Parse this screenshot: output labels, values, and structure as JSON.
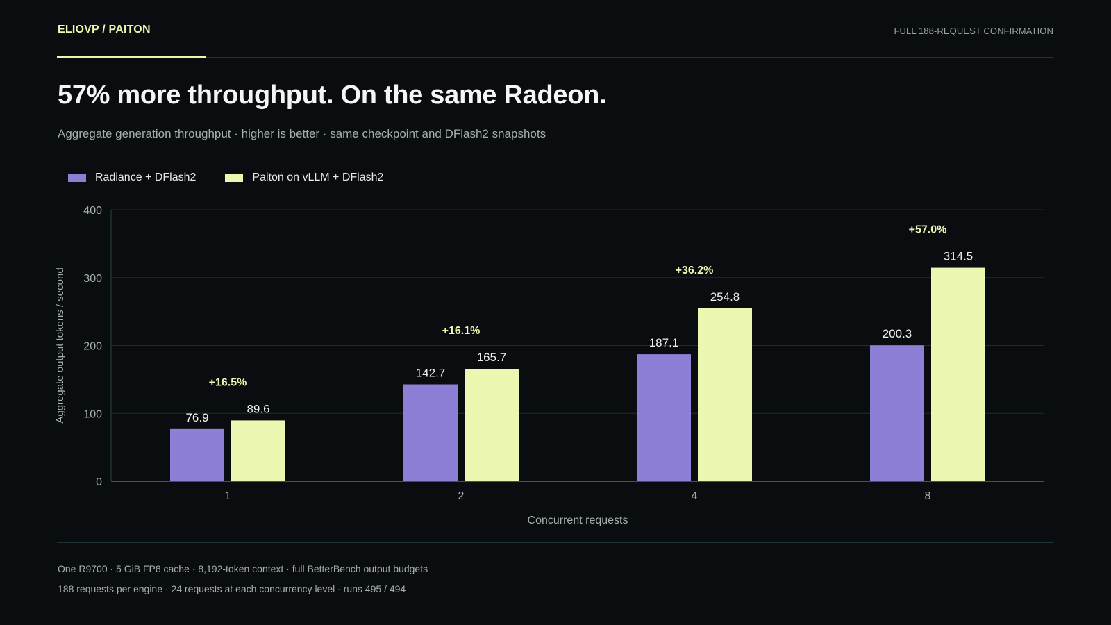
{
  "header": {
    "brand": "ELIOVP / PAITON",
    "right_label": "FULL 188-REQUEST CONFIRMATION"
  },
  "title": "57% more throughput. On the same Radeon.",
  "subtitle": "Aggregate generation throughput · higher is better · same checkpoint and DFlash2 snapshots",
  "footer": {
    "notes": [
      "One R9700 · 5 GiB FP8 cache · 8,192-token context · full BetterBench output budgets",
      "188 requests per engine · 24 requests at each concurrency level · runs 495 / 494"
    ]
  },
  "colors": {
    "background": "#0a0d0f",
    "series_a": "#8d7fd6",
    "series_b": "#ecf8b2",
    "accent": "#ecf8b2",
    "grid": "#1c2f2c"
  },
  "chart_data": {
    "type": "bar",
    "categories": [
      "1",
      "2",
      "4",
      "8"
    ],
    "series": [
      {
        "name": "Radiance + DFlash2",
        "values": [
          76.9,
          142.7,
          187.1,
          200.3
        ]
      },
      {
        "name": "Paiton on vLLM + DFlash2",
        "values": [
          89.6,
          165.7,
          254.8,
          314.5
        ]
      }
    ],
    "annotations": [
      "+16.5%",
      "+16.1%",
      "+36.2%",
      "+57.0%"
    ],
    "xlabel": "Concurrent requests",
    "ylabel": "Aggregate output tokens / second",
    "ylim": [
      0,
      400
    ],
    "yticks": [
      0,
      100,
      200,
      300,
      400
    ],
    "grid": true,
    "legend_position": "top-left"
  }
}
